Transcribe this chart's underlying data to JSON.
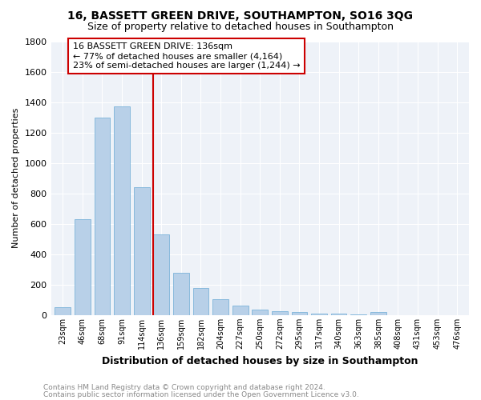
{
  "title": "16, BASSETT GREEN DRIVE, SOUTHAMPTON, SO16 3QG",
  "subtitle": "Size of property relative to detached houses in Southampton",
  "xlabel": "Distribution of detached houses by size in Southampton",
  "ylabel": "Number of detached properties",
  "footnote1": "Contains HM Land Registry data © Crown copyright and database right 2024.",
  "footnote2": "Contains public sector information licensed under the Open Government Licence v3.0.",
  "annotation_line1": "16 BASSETT GREEN DRIVE: 136sqm",
  "annotation_line2": "← 77% of detached houses are smaller (4,164)",
  "annotation_line3": "23% of semi-detached houses are larger (1,244) →",
  "bar_color": "#b8d0e8",
  "bar_edge_color": "#6aaad4",
  "highlight_color": "#cc0000",
  "bg_color": "#eef2f8",
  "categories": [
    "23sqm",
    "46sqm",
    "68sqm",
    "91sqm",
    "114sqm",
    "136sqm",
    "159sqm",
    "182sqm",
    "204sqm",
    "227sqm",
    "250sqm",
    "272sqm",
    "295sqm",
    "317sqm",
    "340sqm",
    "363sqm",
    "385sqm",
    "408sqm",
    "431sqm",
    "453sqm",
    "476sqm"
  ],
  "values": [
    50,
    630,
    1300,
    1370,
    840,
    530,
    280,
    180,
    105,
    65,
    35,
    25,
    20,
    12,
    8,
    5,
    20,
    2,
    1,
    1,
    1
  ],
  "ylim": [
    0,
    1800
  ],
  "yticks": [
    0,
    200,
    400,
    600,
    800,
    1000,
    1200,
    1400,
    1600,
    1800
  ],
  "title_fontsize": 10,
  "subtitle_fontsize": 9,
  "ylabel_fontsize": 8,
  "xlabel_fontsize": 9,
  "tick_fontsize": 8,
  "xtick_fontsize": 7,
  "footnote_fontsize": 6.5,
  "annot_fontsize": 8
}
